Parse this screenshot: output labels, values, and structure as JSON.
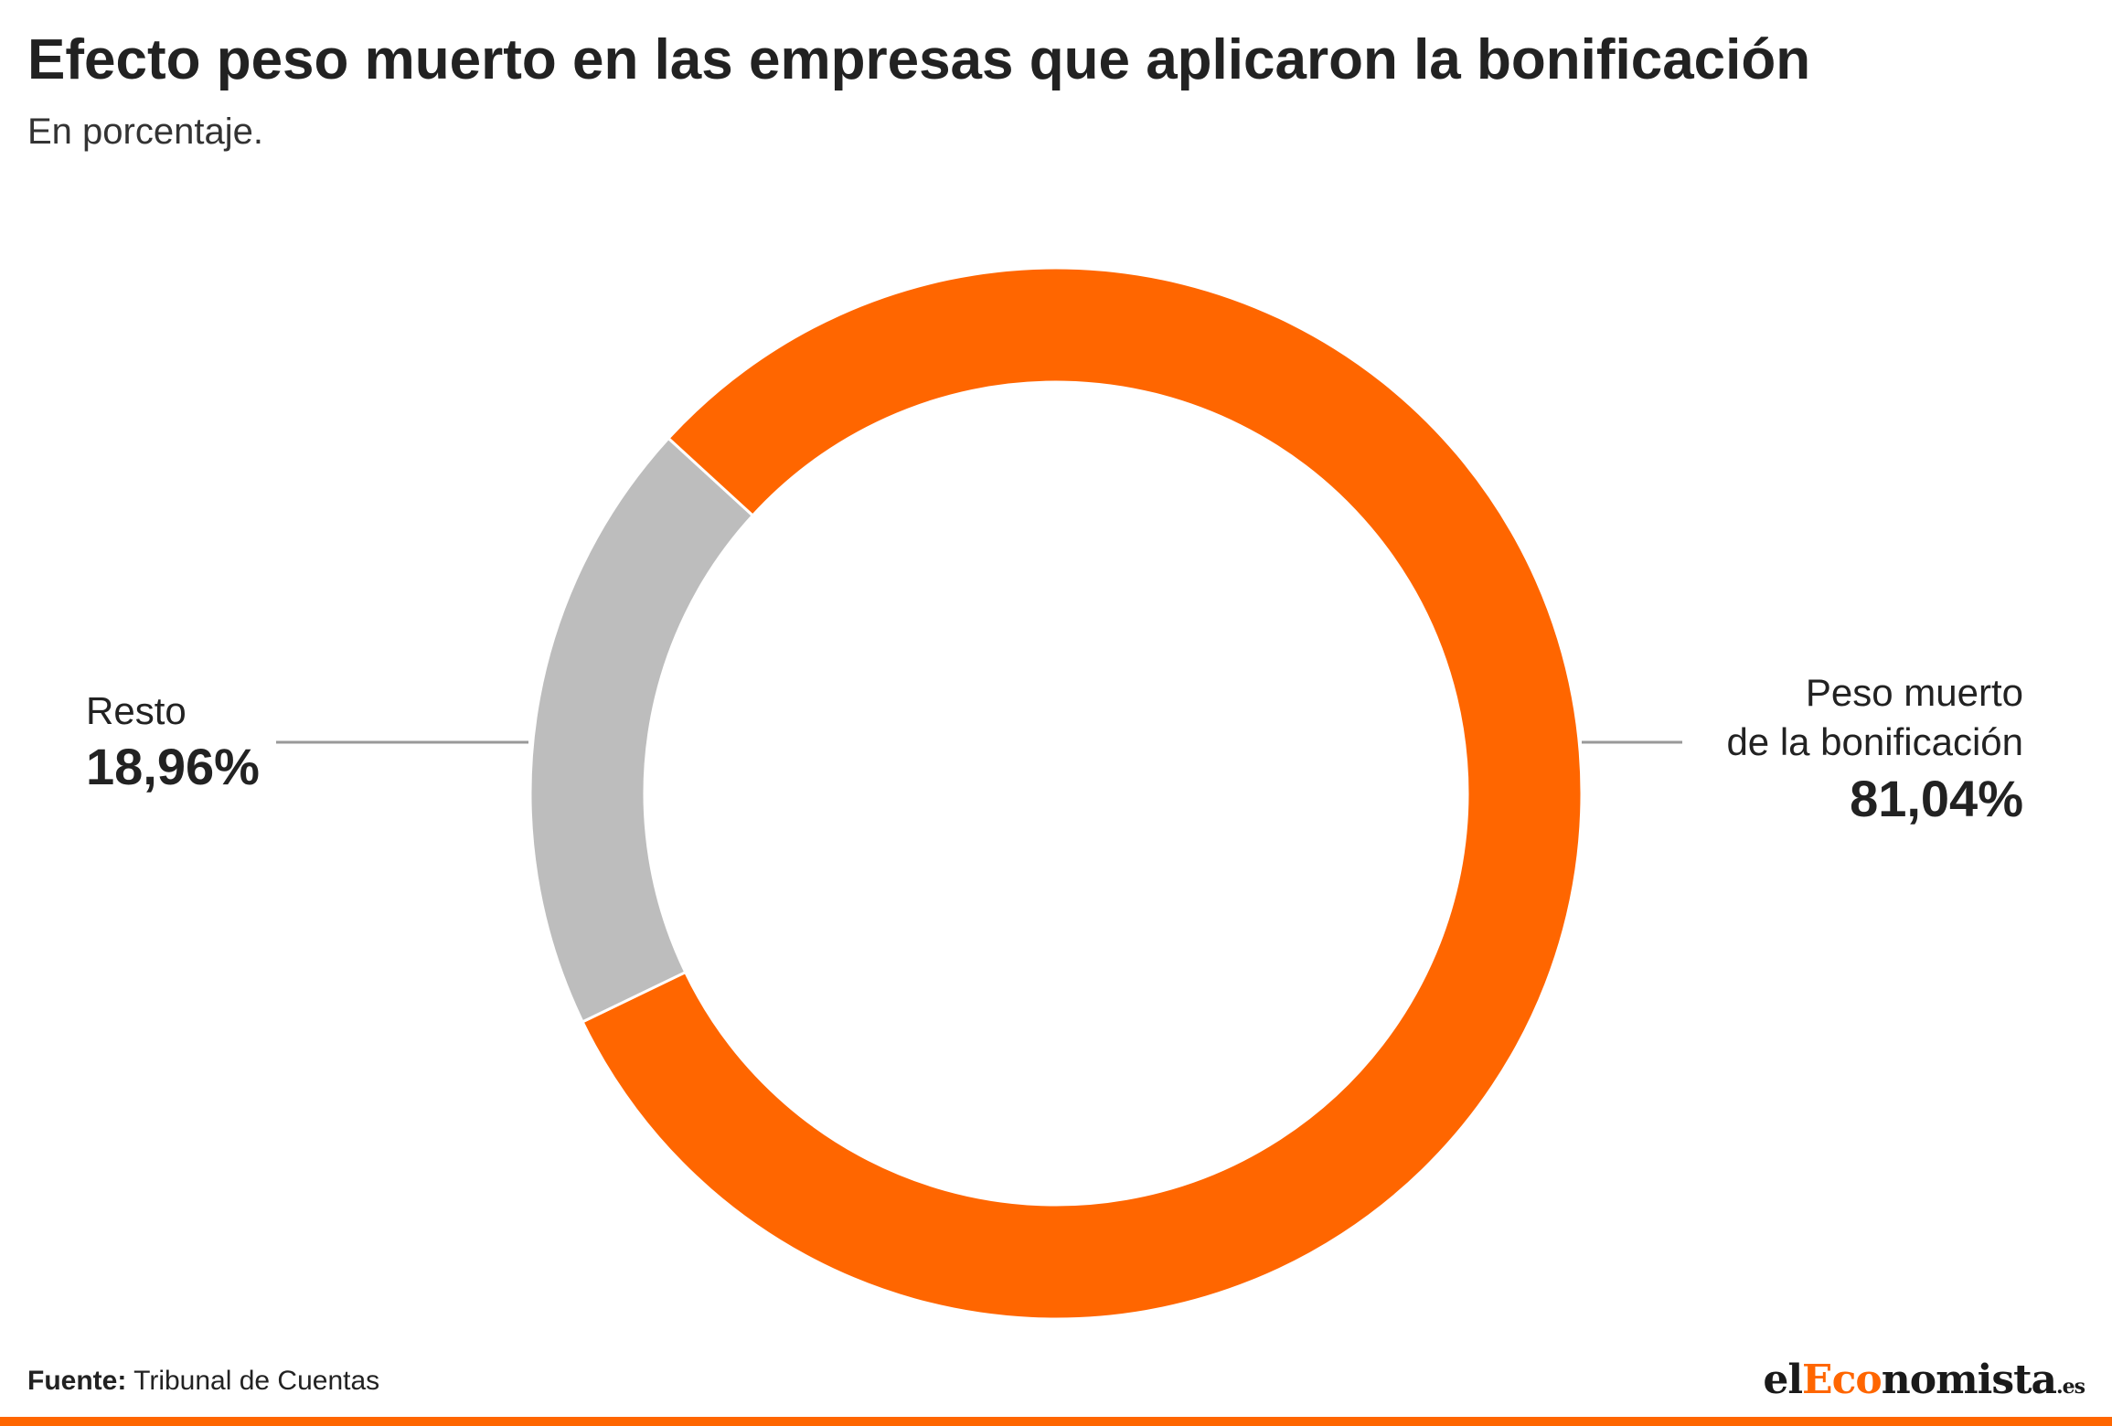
{
  "header": {
    "title": "Efecto peso muerto en las empresas que aplicaron la bonificación",
    "subtitle": "En porcentaje."
  },
  "chart_data": {
    "type": "pie",
    "variant": "donut",
    "title": "Efecto peso muerto en las empresas que aplicaron la bonificación",
    "subtitle": "En porcentaje.",
    "slices": [
      {
        "label": "Peso muerto de la bonificación",
        "label_lines": [
          "Peso muerto",
          "de la bonificación"
        ],
        "value": 81.04,
        "value_text": "81,04%",
        "color": "#ff6600"
      },
      {
        "label": "Resto",
        "label_lines": [
          "Resto"
        ],
        "value": 18.96,
        "value_text": "18,96%",
        "color": "#bdbdbd"
      }
    ]
  },
  "footer": {
    "source_label": "Fuente:",
    "source_text": " Tribunal de Cuentas",
    "logo_prefix": "el",
    "logo_accent": "Eco",
    "logo_rest": "nomista",
    "logo_tld": ".es"
  },
  "colors": {
    "accent": "#ff6600",
    "rest": "#bdbdbd",
    "leader": "#999999"
  }
}
